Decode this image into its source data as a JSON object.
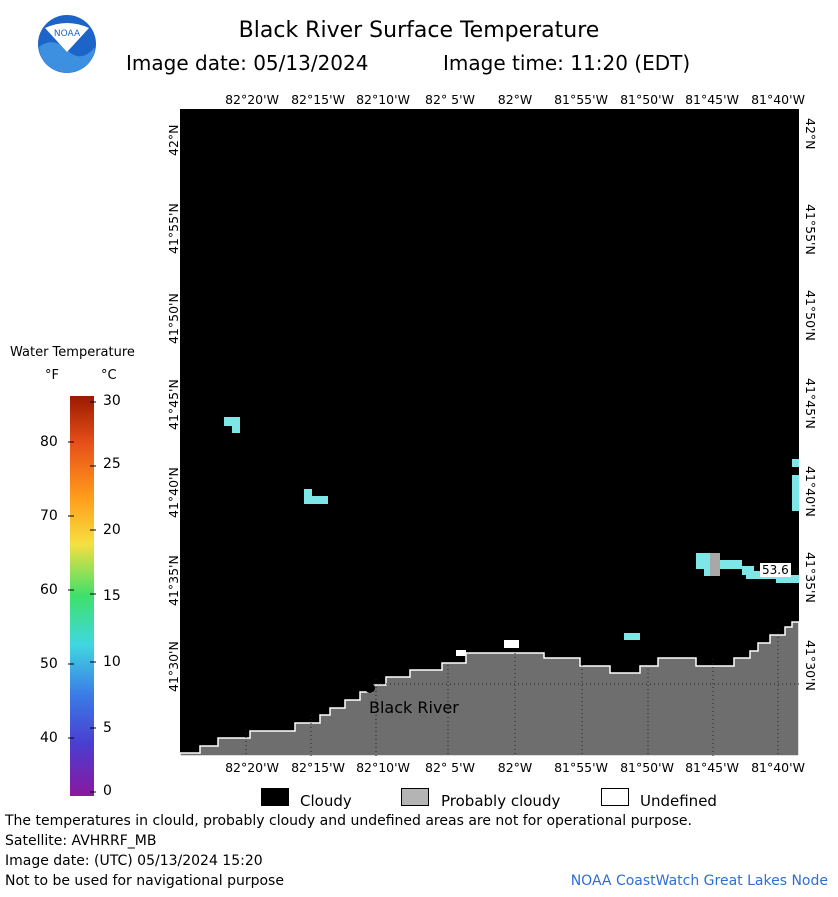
{
  "header": {
    "title": "Black River Surface Temperature",
    "image_date": "Image date: 05/13/2024",
    "image_time": "Image time: 11:20 (EDT)"
  },
  "logo": {
    "text": "NOAA",
    "icon": "noaa-logo"
  },
  "map": {
    "lon_labels": [
      "82°20'W",
      "82°15'W",
      "82°10'W",
      "82° 5'W",
      "82°W",
      "81°55'W",
      "81°50'W",
      "81°45'W",
      "81°40'W"
    ],
    "lat_labels": [
      "42°N",
      "41°55'N",
      "41°50'N",
      "41°45'N",
      "41°40'N",
      "41°35'N",
      "41°30'N"
    ],
    "place_label": "Black River",
    "temperature_label": "53.6",
    "colors": {
      "cloudy": "#000000",
      "land": "#6e6e6e",
      "water_warm": "#7ee6e6"
    }
  },
  "legend": {
    "title": "Water Temperature",
    "unit_f": "°F",
    "unit_c": "°C",
    "fahrenheit_ticks": [
      "80",
      "70",
      "60",
      "50",
      "40"
    ],
    "celsius_ticks": [
      "30",
      "25",
      "20",
      "15",
      "10",
      "5",
      "0"
    ]
  },
  "key": {
    "cloudy": "Cloudy",
    "probably_cloudy": "Probably cloudy",
    "undefined": "Undefined"
  },
  "footer": {
    "disclaimer": "The temperatures in clould, probably cloudy and undefined areas are not for operational purpose.",
    "satellite": "Satellite: AVHRRF_MB",
    "utc_date": "Image date: (UTC) 05/13/2024  15:20",
    "navigation": "Not to be used for navigational purpose",
    "credit": "NOAA CoastWatch Great Lakes Node"
  }
}
